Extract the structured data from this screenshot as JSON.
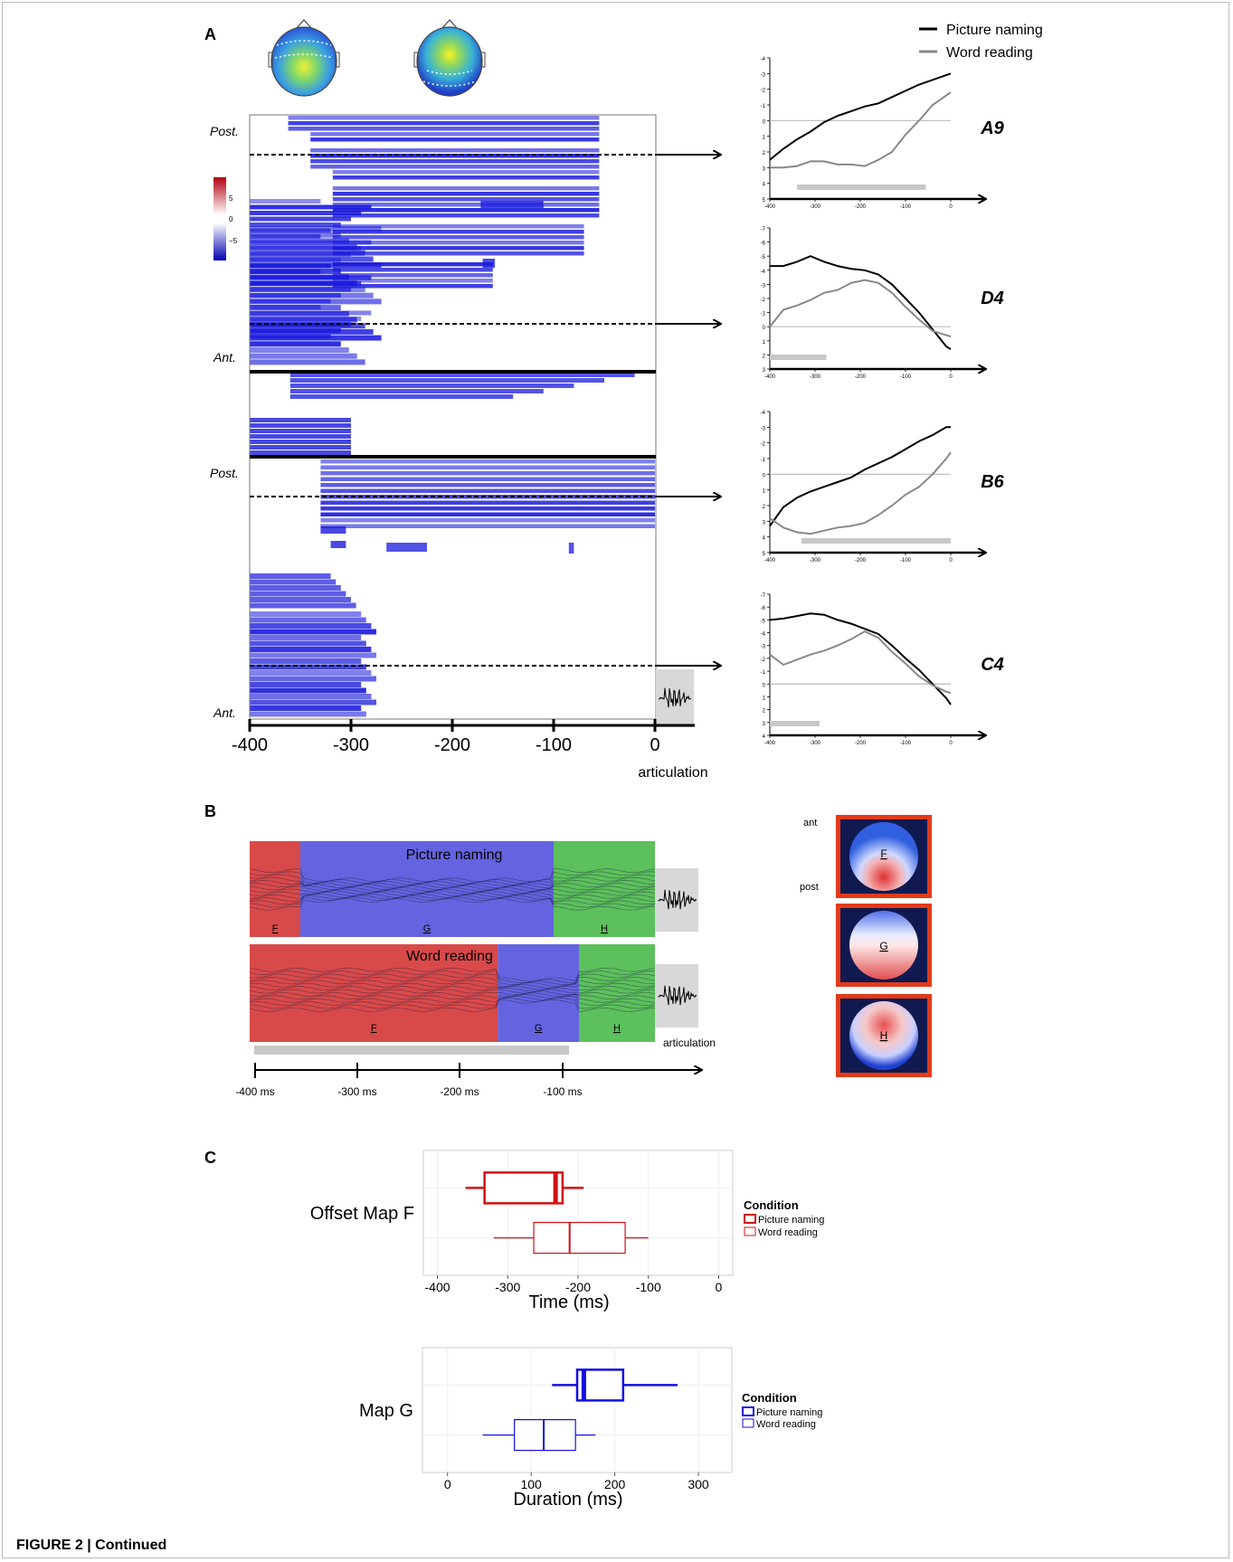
{
  "panel_labels": {
    "a": "A",
    "b": "B",
    "c": "C"
  },
  "caption": "FIGURE 2 | Continued",
  "panel_a": {
    "left_labels": [
      "Post.",
      "Ant.",
      "Post.",
      "Ant."
    ],
    "colorbar_ticks": [
      "5",
      "0",
      "−5"
    ],
    "x_ticks": [
      "-400",
      "-300",
      "-200",
      "-100",
      "0"
    ],
    "articulation_label": "articulation",
    "legend": [
      {
        "label": "Picture naming",
        "color": "#000000"
      },
      {
        "label": "Word reading",
        "color": "#888888"
      }
    ],
    "colors": {
      "heat_blue": "#1a1adc",
      "heat_red": "#c0121c"
    }
  },
  "panel_b": {
    "row_titles": [
      "Picture naming",
      "Word reading"
    ],
    "map_letters": [
      "F",
      "G",
      "H"
    ],
    "x_ticks": [
      "-400 ms",
      "-300 ms",
      "-200 ms",
      "-100 ms"
    ],
    "articulation_label": "articulation",
    "ant_label": "ant",
    "post_label": "post",
    "map_boundaries_ms": {
      "picture_naming": {
        "F_end": -350,
        "G_end": -100,
        "H_end": 0
      },
      "word_reading": {
        "F_end": -155,
        "G_end": -75,
        "H_end": 0
      }
    },
    "colors": {
      "F": "#d84a4a",
      "G": "#6464e0",
      "H": "#5cc05c",
      "topo_frame": "#e33a1a"
    }
  },
  "panel_c": {
    "legend_title": "Condition",
    "legend_items": [
      "Picture naming",
      "Word reading"
    ],
    "colors": {
      "top": "#d01010",
      "bottom": "#1010e0"
    }
  },
  "chart_data": [
    {
      "type": "line",
      "title": "A9",
      "x_ticks": [
        -400,
        -300,
        -200,
        -100,
        0
      ],
      "ylim": [
        5,
        -4
      ],
      "y_ticks": [
        -4,
        -3,
        -2,
        -1,
        0,
        1,
        2,
        3,
        4,
        5
      ],
      "significance_bar_ms": [
        -340,
        -55
      ],
      "series": [
        {
          "name": "Picture naming",
          "x": [
            -400,
            -370,
            -340,
            -310,
            -280,
            -250,
            -220,
            -190,
            -160,
            -130,
            -100,
            -70,
            -40,
            -10,
            0
          ],
          "y": [
            2.5,
            1.8,
            1.2,
            0.7,
            0.1,
            -0.3,
            -0.6,
            -0.9,
            -1.1,
            -1.5,
            -1.9,
            -2.3,
            -2.6,
            -2.9,
            -3.0
          ]
        },
        {
          "name": "Word reading",
          "x": [
            -400,
            -370,
            -340,
            -310,
            -280,
            -250,
            -220,
            -190,
            -160,
            -130,
            -100,
            -70,
            -40,
            -10,
            0
          ],
          "y": [
            3.0,
            3.0,
            2.9,
            2.6,
            2.6,
            2.8,
            2.8,
            2.9,
            2.5,
            2.0,
            0.9,
            0.0,
            -1.0,
            -1.6,
            -1.8
          ]
        }
      ]
    },
    {
      "type": "line",
      "title": "D4",
      "x_ticks": [
        -400,
        -300,
        -200,
        -100,
        0
      ],
      "ylim": [
        3,
        -7
      ],
      "y_ticks": [
        -7,
        -6,
        -5,
        -4,
        -3,
        -2,
        -1,
        0,
        1,
        2,
        3
      ],
      "significance_bar_ms": [
        -400,
        -275
      ],
      "series": [
        {
          "name": "Picture naming",
          "x": [
            -400,
            -370,
            -340,
            -310,
            -280,
            -250,
            -220,
            -190,
            -160,
            -130,
            -100,
            -70,
            -40,
            -10,
            0
          ],
          "y": [
            -4.3,
            -4.3,
            -4.6,
            -5.0,
            -4.6,
            -4.3,
            -4.1,
            -4.0,
            -3.7,
            -3.0,
            -2.0,
            -1.0,
            0.2,
            1.4,
            1.6
          ]
        },
        {
          "name": "Word reading",
          "x": [
            -400,
            -370,
            -340,
            -310,
            -280,
            -250,
            -220,
            -190,
            -160,
            -130,
            -100,
            -70,
            -40,
            -10,
            0
          ],
          "y": [
            0.0,
            -1.2,
            -1.5,
            -1.9,
            -2.4,
            -2.6,
            -3.1,
            -3.3,
            -3.1,
            -2.4,
            -1.4,
            -0.5,
            0.3,
            0.6,
            0.7
          ]
        }
      ]
    },
    {
      "type": "line",
      "title": "B6",
      "x_ticks": [
        -400,
        -300,
        -200,
        -100,
        0
      ],
      "ylim": [
        5,
        -4
      ],
      "y_ticks": [
        -4,
        -3,
        -2,
        -1,
        0,
        1,
        2,
        3,
        4,
        5
      ],
      "significance_bar_ms": [
        -330,
        0
      ],
      "series": [
        {
          "name": "Picture naming",
          "x": [
            -400,
            -370,
            -340,
            -310,
            -280,
            -250,
            -220,
            -190,
            -160,
            -130,
            -100,
            -70,
            -40,
            -10,
            0
          ],
          "y": [
            3.3,
            2.1,
            1.5,
            1.1,
            0.8,
            0.5,
            0.2,
            -0.3,
            -0.7,
            -1.1,
            -1.6,
            -2.1,
            -2.5,
            -3.0,
            -3.0
          ]
        },
        {
          "name": "Word reading",
          "x": [
            -400,
            -370,
            -340,
            -310,
            -280,
            -250,
            -220,
            -190,
            -160,
            -130,
            -100,
            -70,
            -40,
            -10,
            0
          ],
          "y": [
            2.8,
            3.4,
            3.7,
            3.8,
            3.6,
            3.4,
            3.3,
            3.1,
            2.6,
            2.0,
            1.3,
            0.8,
            0.0,
            -1.0,
            -1.4
          ]
        }
      ]
    },
    {
      "type": "line",
      "title": "C4",
      "x_ticks": [
        -400,
        -300,
        -200,
        -100,
        0
      ],
      "ylim": [
        4,
        -7
      ],
      "y_ticks": [
        -7,
        -6,
        -5,
        -4,
        -3,
        -2,
        -1,
        0,
        1,
        2,
        3,
        4
      ],
      "significance_bar_ms": [
        -400,
        -290
      ],
      "series": [
        {
          "name": "Picture naming",
          "x": [
            -400,
            -370,
            -340,
            -310,
            -280,
            -250,
            -220,
            -190,
            -160,
            -130,
            -100,
            -70,
            -40,
            -10,
            0
          ],
          "y": [
            -5.0,
            -5.1,
            -5.3,
            -5.5,
            -5.4,
            -5.0,
            -4.7,
            -4.3,
            -3.9,
            -3.0,
            -2.0,
            -1.1,
            0.0,
            1.1,
            1.6
          ]
        },
        {
          "name": "Word reading",
          "x": [
            -400,
            -370,
            -340,
            -310,
            -280,
            -250,
            -220,
            -190,
            -160,
            -130,
            -100,
            -70,
            -40,
            -10,
            0
          ],
          "y": [
            -2.3,
            -1.5,
            -1.9,
            -2.3,
            -2.6,
            -3.0,
            -3.5,
            -4.1,
            -3.6,
            -2.5,
            -1.6,
            -0.6,
            0.1,
            0.6,
            0.7
          ]
        }
      ]
    },
    {
      "type": "box",
      "ylabel": "Offset Map F",
      "xlabel": "Time (ms)",
      "xlim": [
        -420,
        20
      ],
      "x_ticks": [
        -400,
        -300,
        -200,
        -100,
        0
      ],
      "boxes": [
        {
          "name": "Picture naming",
          "whisker_low": -360,
          "q1": -333,
          "median": -232,
          "q3": -222,
          "whisker_high": -192
        },
        {
          "name": "Word reading",
          "whisker_low": -320,
          "q1": -263,
          "median": -212,
          "q3": -133,
          "whisker_high": -100
        }
      ]
    },
    {
      "type": "box",
      "ylabel": "Map G",
      "xlabel": "Duration (ms)",
      "xlim": [
        -30,
        340
      ],
      "x_ticks": [
        0,
        100,
        200,
        300
      ],
      "boxes": [
        {
          "name": "Picture naming",
          "whisker_low": 125,
          "q1": 155,
          "median": 163,
          "q3": 210,
          "whisker_high": 275
        },
        {
          "name": "Word reading",
          "whisker_low": 42,
          "q1": 80,
          "median": 115,
          "q3": 153,
          "whisker_high": 177
        }
      ]
    }
  ]
}
